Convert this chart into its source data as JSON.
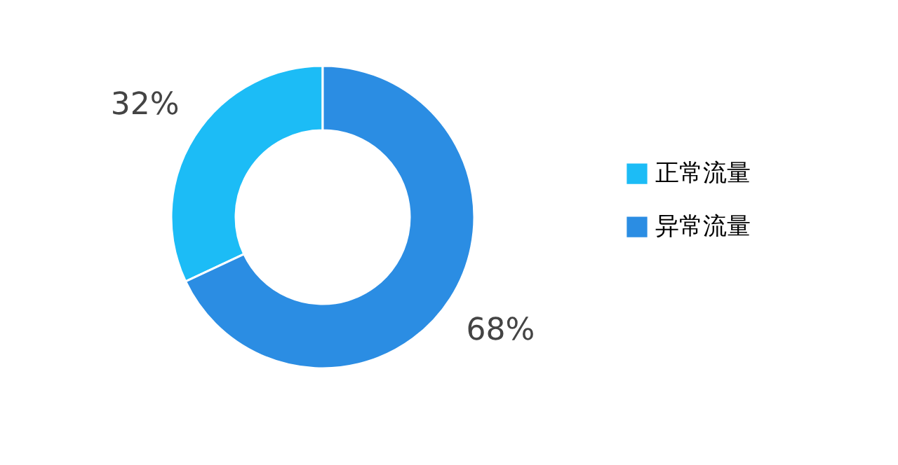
{
  "chart_data": {
    "type": "donut",
    "categories": [
      "正常流量",
      "异常流量"
    ],
    "values": [
      32,
      68
    ],
    "colors": [
      "#1cbcf6",
      "#2b8de3"
    ],
    "value_labels": [
      "32%",
      "68%"
    ],
    "legend": "right"
  }
}
